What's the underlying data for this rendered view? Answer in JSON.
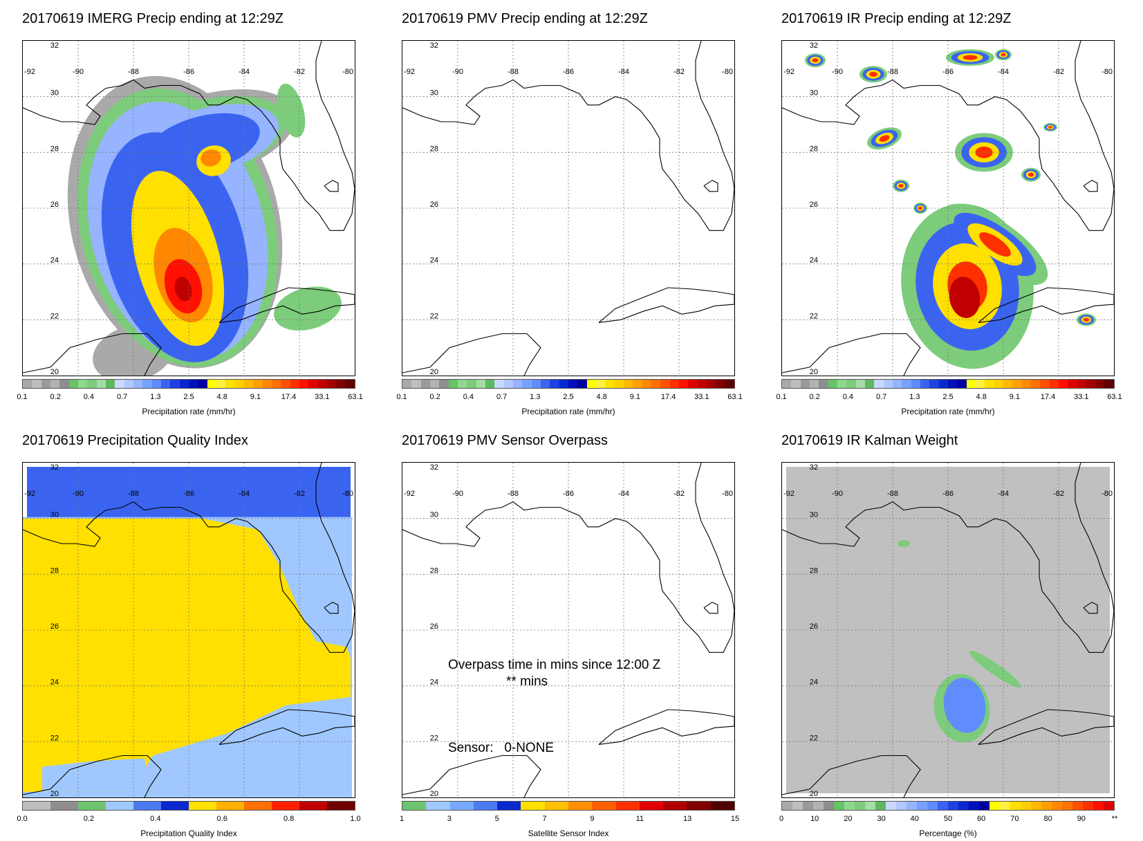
{
  "panels": [
    {
      "title": "20170619 IMERG Precip ending at 12:29Z",
      "kind": "imerg"
    },
    {
      "title": "20170619 PMV Precip ending at 12:29Z",
      "kind": "blank"
    },
    {
      "title": "20170619 IR Precip ending at 12:29Z",
      "kind": "ir"
    },
    {
      "title": "20170619 Precipitation Quality Index",
      "kind": "pqi"
    },
    {
      "title": "20170619 PMV Sensor Overpass",
      "kind": "overpass"
    },
    {
      "title": "20170619 IR Kalman Weight",
      "kind": "kalman"
    }
  ],
  "map": {
    "lon_labels": [
      "-92",
      "-90",
      "-88",
      "-86",
      "-84",
      "-82",
      "-80"
    ],
    "lat_labels": [
      "32",
      "30",
      "28",
      "26",
      "24",
      "22",
      "20"
    ]
  },
  "colorbars": {
    "precip": {
      "label": "Precipitation rate (mm/hr)",
      "ticks": [
        "0.1",
        "0.2",
        "0.4",
        "0.7",
        "1.3",
        "2.5",
        "4.8",
        "9.1",
        "17.4",
        "33.1",
        "63.1"
      ],
      "colors": [
        "#a9a9a9",
        "#bebebe",
        "#9a9a9a",
        "#b2b2b2",
        "#8e8e8e",
        "#66c466",
        "#8ed88e",
        "#7ccc7c",
        "#a5dca5",
        "#5fb85f",
        "#c8d8ff",
        "#b0c8ff",
        "#96b4ff",
        "#7aa0ff",
        "#5f8cff",
        "#3a64f0",
        "#2040e0",
        "#0a28d0",
        "#0010b8",
        "#0000a0",
        "#ffff00",
        "#fff040",
        "#ffe000",
        "#ffd000",
        "#ffb800",
        "#ffa000",
        "#ff8800",
        "#ff7000",
        "#ff5000",
        "#ff3000",
        "#ff1000",
        "#e00000",
        "#c00000",
        "#a00000",
        "#800000",
        "#600000"
      ]
    },
    "pqi": {
      "label": "Precipitation Quality Index",
      "ticks": [
        "0.0",
        "0.2",
        "0.4",
        "0.6",
        "0.8",
        "1.0"
      ],
      "colors": [
        "#bebebe",
        "#8e8e8e",
        "#6ec46e",
        "#a0c8ff",
        "#4a7cf0",
        "#0a28d0",
        "#ffe000",
        "#ffb000",
        "#ff7000",
        "#ff2000",
        "#c00000",
        "#700000"
      ]
    },
    "sensor": {
      "label": "Satellite Sensor Index",
      "ticks": [
        "1",
        "3",
        "5",
        "7",
        "9",
        "11",
        "13",
        "15"
      ],
      "colors": [
        "#6ec46e",
        "#a0c8ff",
        "#78a8ff",
        "#4a7cf0",
        "#0a28d0",
        "#ffe000",
        "#ffc000",
        "#ff9000",
        "#ff6000",
        "#ff3000",
        "#e00000",
        "#b00000",
        "#800000",
        "#500000"
      ]
    },
    "percent": {
      "label": "Percentage (%)",
      "ticks": [
        "0",
        "10",
        "20",
        "30",
        "40",
        "50",
        "60",
        "70",
        "80",
        "90",
        "**"
      ],
      "colors": [
        "#a9a9a9",
        "#bebebe",
        "#9a9a9a",
        "#b2b2b2",
        "#8e8e8e",
        "#66c466",
        "#8ed88e",
        "#7ccc7c",
        "#a5dca5",
        "#5fb85f",
        "#c8d8ff",
        "#b0c8ff",
        "#96b4ff",
        "#7aa0ff",
        "#5f8cff",
        "#3a64f0",
        "#2040e0",
        "#0a28d0",
        "#0010b8",
        "#0000a0",
        "#ffff00",
        "#fff040",
        "#ffe000",
        "#ffd000",
        "#ffb800",
        "#ffa000",
        "#ff8800",
        "#ff7000",
        "#ff5000",
        "#ff3000",
        "#ff1000",
        "#e00000"
      ]
    }
  },
  "overpass": {
    "line1": "Overpass time in mins since 12:00 Z",
    "line2": "** mins",
    "sensor_line": "Sensor:   0-NONE"
  }
}
